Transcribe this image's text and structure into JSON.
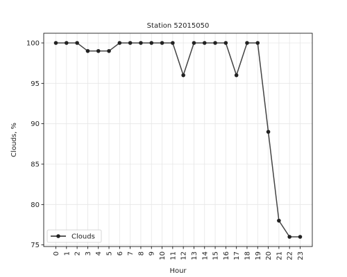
{
  "chart_data": {
    "type": "line",
    "title": "Station 52015050",
    "xlabel": "Hour",
    "ylabel": "Clouds, %",
    "categories": [
      "0",
      "1",
      "2",
      "3",
      "4",
      "5",
      "6",
      "7",
      "8",
      "9",
      "10",
      "11",
      "12",
      "13",
      "14",
      "15",
      "16",
      "17",
      "18",
      "19",
      "20",
      "21",
      "22",
      "23"
    ],
    "series": [
      {
        "name": "Clouds",
        "values": [
          100,
          100,
          100,
          99,
          99,
          99,
          100,
          100,
          100,
          100,
          100,
          100,
          96,
          100,
          100,
          100,
          100,
          96,
          100,
          100,
          89,
          78,
          76,
          76
        ]
      }
    ],
    "yticks": [
      75,
      80,
      85,
      90,
      95,
      100
    ],
    "ylim": [
      74.8,
      101.2
    ],
    "grid": true,
    "legend_position": "lower-left",
    "line_color": "#222222"
  }
}
